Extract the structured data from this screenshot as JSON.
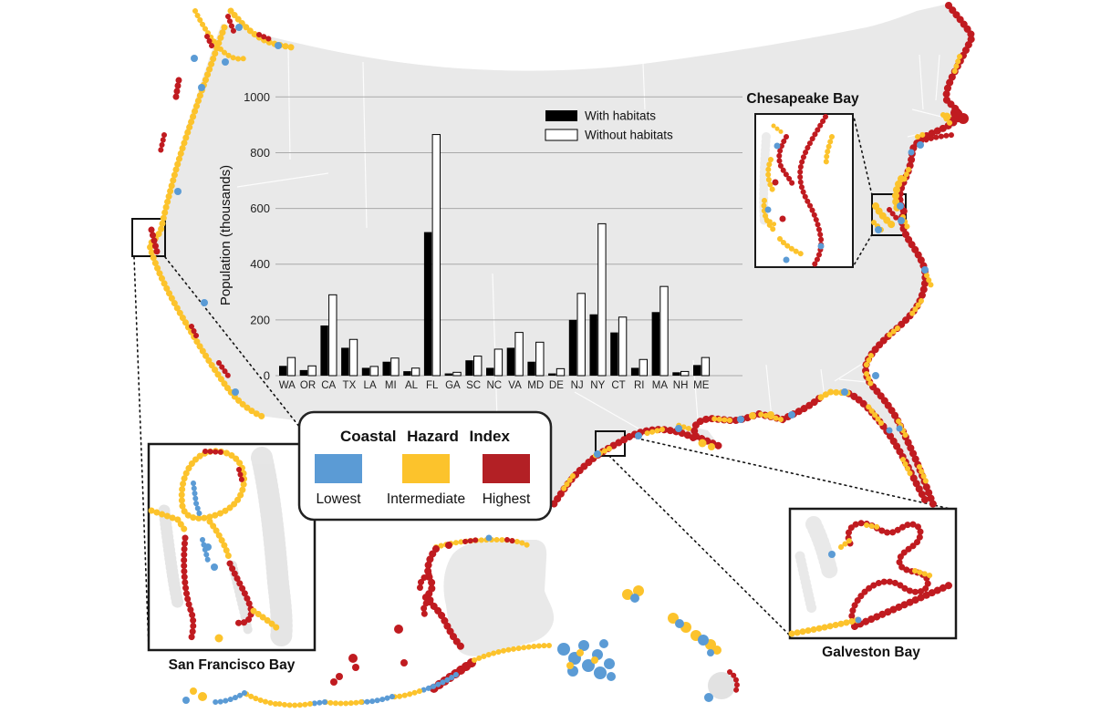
{
  "colors": {
    "lowest": "#5B9BD5",
    "intermediate": "#FCC32C",
    "highest": "#C01B20",
    "legend_red": "#B32025",
    "land": "#E9E9E9"
  },
  "chart": {
    "y_axis_label": "Population (thousands)",
    "legend": [
      {
        "label": "With habitats"
      },
      {
        "label": "Without habitats"
      }
    ]
  },
  "chart_data": {
    "type": "bar",
    "title": "",
    "xlabel": "",
    "ylabel": "Population (thousands)",
    "categories": [
      "WA",
      "OR",
      "CA",
      "TX",
      "LA",
      "MI",
      "AL",
      "FL",
      "GA",
      "SC",
      "NC",
      "VA",
      "MD",
      "DE",
      "NJ",
      "NY",
      "CT",
      "RI",
      "MA",
      "NH",
      "ME"
    ],
    "series": [
      {
        "name": "With habitats",
        "values": [
          35,
          20,
          180,
          100,
          28,
          50,
          16,
          515,
          8,
          55,
          28,
          100,
          50,
          8,
          200,
          220,
          155,
          28,
          228,
          12,
          38
        ]
      },
      {
        "name": "Without habitats",
        "values": [
          65,
          35,
          290,
          130,
          33,
          63,
          27,
          865,
          12,
          70,
          95,
          155,
          120,
          25,
          295,
          545,
          210,
          58,
          320,
          15,
          65
        ]
      }
    ],
    "ylim": [
      0,
      1000
    ],
    "yticks": [
      0,
      200,
      400,
      600,
      800,
      1000
    ],
    "grid": true,
    "legend_position": "top-right"
  },
  "hazard_legend": {
    "title": "Coastal Hazard Index",
    "items": [
      {
        "label": "Lowest",
        "color": "#5B9BD5"
      },
      {
        "label": "Intermediate",
        "color": "#FCC32C"
      },
      {
        "label": "Highest",
        "color": "#B32025"
      }
    ]
  },
  "insets": {
    "san_francisco": {
      "label": "San Francisco Bay"
    },
    "chesapeake": {
      "label": "Chesapeake Bay"
    },
    "galveston": {
      "label": "Galveston Bay"
    }
  }
}
